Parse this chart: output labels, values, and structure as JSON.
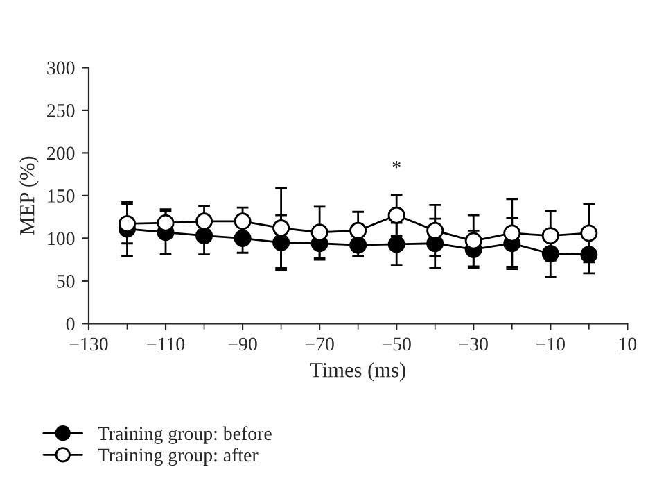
{
  "chart_data": {
    "type": "line",
    "xlabel": "Times (ms)",
    "ylabel": "MEP (%)",
    "x": [
      -120,
      -110,
      -100,
      -90,
      -80,
      -70,
      -60,
      -50,
      -40,
      -30,
      -20,
      -10,
      0
    ],
    "xlim": [
      -130,
      10
    ],
    "xticks": [
      -130,
      -110,
      -90,
      -70,
      -50,
      -30,
      -10,
      10
    ],
    "ylim": [
      0,
      300
    ],
    "yticks": [
      0,
      50,
      100,
      150,
      200,
      250,
      300
    ],
    "marker": "circle",
    "grid": false,
    "legend": "bottom",
    "annotations": [
      {
        "text": "*",
        "x": -50,
        "y": 127
      }
    ],
    "series": [
      {
        "name": "Training group: before",
        "color": "#000000",
        "values": [
          111,
          107,
          103,
          100,
          95,
          94,
          92,
          93,
          94,
          87,
          94,
          82,
          81
        ],
        "errors": [
          32,
          25,
          22,
          17,
          32,
          19,
          13,
          25,
          29,
          22,
          30,
          27,
          22
        ]
      },
      {
        "name": "Training group: after",
        "color": "#000000",
        "colors": [
          "#ffffff",
          "#ffffff",
          "#ffffff",
          "#ffffff",
          "#ffffff",
          "#ffffff",
          "#ffffff",
          "#ffffff",
          "#ffffff",
          "#ffffff",
          "#ffffff",
          "#ffffff",
          "#ffffff"
        ],
        "values": [
          117,
          118,
          120,
          120,
          112,
          107,
          109,
          127,
          109,
          97,
          106,
          103,
          106
        ],
        "errors": [
          23,
          16,
          18,
          16,
          47,
          30,
          22,
          24,
          30,
          30,
          40,
          29,
          34
        ]
      }
    ]
  }
}
